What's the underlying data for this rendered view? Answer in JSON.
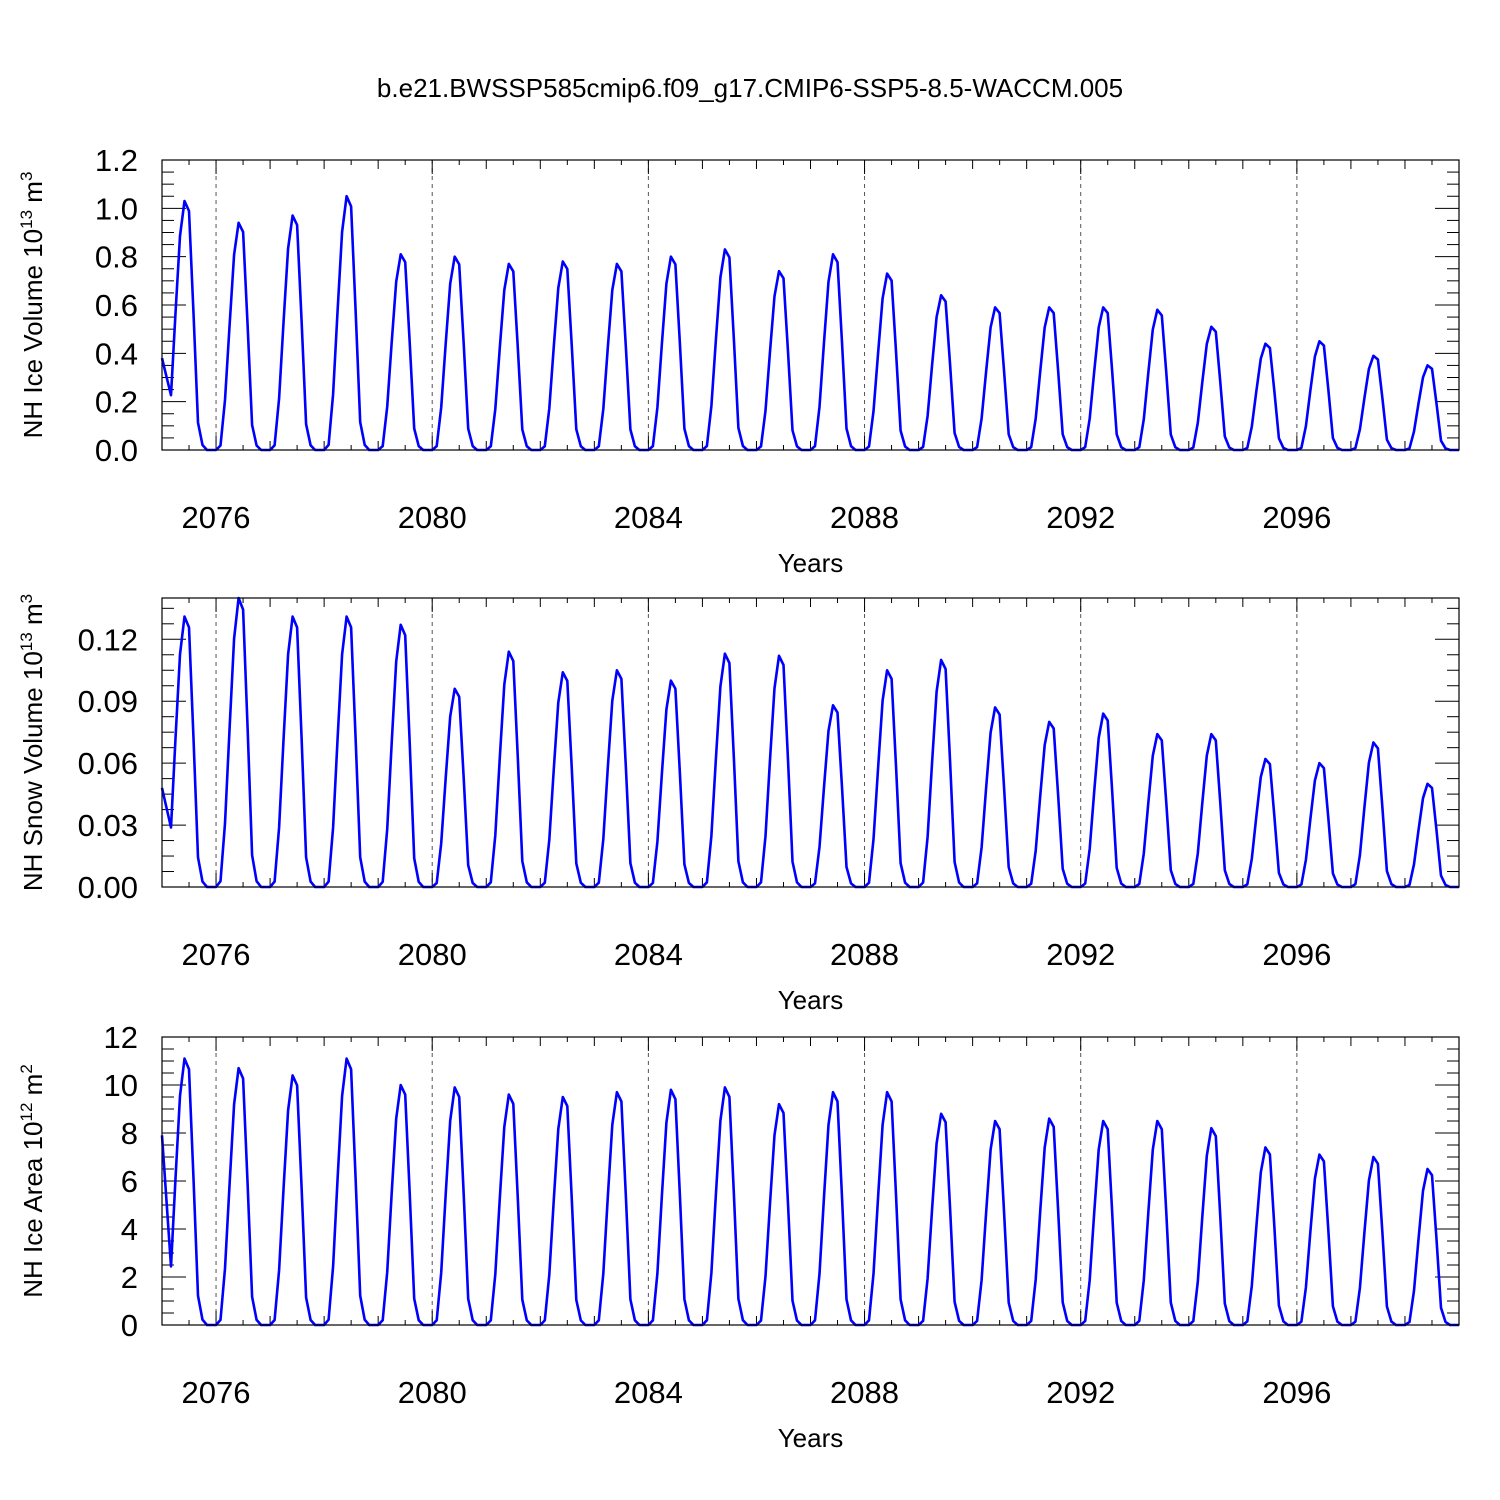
{
  "title": "b.e21.BWSSP585cmip6.f09_g17.CMIP6-SSP5-8.5-WACCM.005",
  "colors": {
    "line": "#0000ff",
    "axis": "#000000",
    "grid": "#555555"
  },
  "chart_data": [
    {
      "type": "line",
      "ylabel": "NH Ice Volume 10^13 m^3",
      "ylabel_parts": {
        "main": "NH Ice Volume 10",
        "exp1": "13",
        "unit": " m",
        "exp2": "3"
      },
      "xlabel": "Years",
      "xlim": [
        2075.0,
        2099.0
      ],
      "ylim": [
        0,
        1.2
      ],
      "y_ticks": [
        0.0,
        0.2,
        0.4,
        0.6,
        0.8,
        1.0,
        1.2
      ],
      "y_tick_labels": [
        "0.0",
        "0.2",
        "0.4",
        "0.6",
        "0.8",
        "1.0",
        "1.2"
      ],
      "x_ticks": [
        2076,
        2080,
        2084,
        2088,
        2092,
        2096
      ],
      "x_tick_labels": [
        "2076",
        "2080",
        "2084",
        "2088",
        "2092",
        "2096"
      ],
      "start_value": 0.38,
      "seasonal_min": 0.0,
      "annual_peaks": [
        1.03,
        0.94,
        0.97,
        1.05,
        0.81,
        0.8,
        0.77,
        0.78,
        0.77,
        0.8,
        0.83,
        0.74,
        0.81,
        0.73,
        0.64,
        0.59,
        0.59,
        0.59,
        0.58,
        0.51,
        0.44,
        0.45,
        0.39,
        0.35
      ],
      "series_name": "NH Ice Volume"
    },
    {
      "type": "line",
      "ylabel": "NH Snow Volume 10^13 m^3",
      "ylabel_parts": {
        "main": "NH Snow Volume 10",
        "exp1": "13",
        "unit": " m",
        "exp2": "3"
      },
      "xlabel": "Years",
      "xlim": [
        2075.0,
        2099.0
      ],
      "ylim": [
        0,
        0.14
      ],
      "y_ticks": [
        0.0,
        0.03,
        0.06,
        0.09,
        0.12
      ],
      "y_tick_labels": [
        "0.00",
        "0.03",
        "0.06",
        "0.09",
        "0.12"
      ],
      "x_ticks": [
        2076,
        2080,
        2084,
        2088,
        2092,
        2096
      ],
      "x_tick_labels": [
        "2076",
        "2080",
        "2084",
        "2088",
        "2092",
        "2096"
      ],
      "start_value": 0.048,
      "seasonal_min": 0.0,
      "annual_peaks": [
        0.131,
        0.14,
        0.131,
        0.131,
        0.127,
        0.096,
        0.114,
        0.104,
        0.105,
        0.1,
        0.113,
        0.112,
        0.088,
        0.105,
        0.11,
        0.087,
        0.08,
        0.084,
        0.074,
        0.074,
        0.062,
        0.06,
        0.07,
        0.05
      ],
      "series_name": "NH Snow Volume"
    },
    {
      "type": "line",
      "ylabel": "NH Ice Area 10^12 m^2",
      "ylabel_parts": {
        "main": "NH Ice Area 10",
        "exp1": "12",
        "unit": " m",
        "exp2": "2"
      },
      "xlabel": "Years",
      "xlim": [
        2075.0,
        2099.0
      ],
      "ylim": [
        0,
        12
      ],
      "y_ticks": [
        0,
        2,
        4,
        6,
        8,
        10,
        12
      ],
      "y_tick_labels": [
        "0",
        "2",
        "4",
        "6",
        "8",
        "10",
        "12"
      ],
      "x_ticks": [
        2076,
        2080,
        2084,
        2088,
        2092,
        2096
      ],
      "x_tick_labels": [
        "2076",
        "2080",
        "2084",
        "2088",
        "2092",
        "2096"
      ],
      "start_value": 7.9,
      "seasonal_min": 0.0,
      "annual_peaks": [
        11.1,
        10.7,
        10.4,
        11.1,
        10.0,
        9.9,
        9.6,
        9.5,
        9.7,
        9.8,
        9.9,
        9.2,
        9.7,
        9.7,
        8.8,
        8.5,
        8.6,
        8.5,
        8.5,
        8.2,
        7.4,
        7.1,
        7.0,
        6.5
      ],
      "series_name": "NH Ice Area"
    }
  ]
}
